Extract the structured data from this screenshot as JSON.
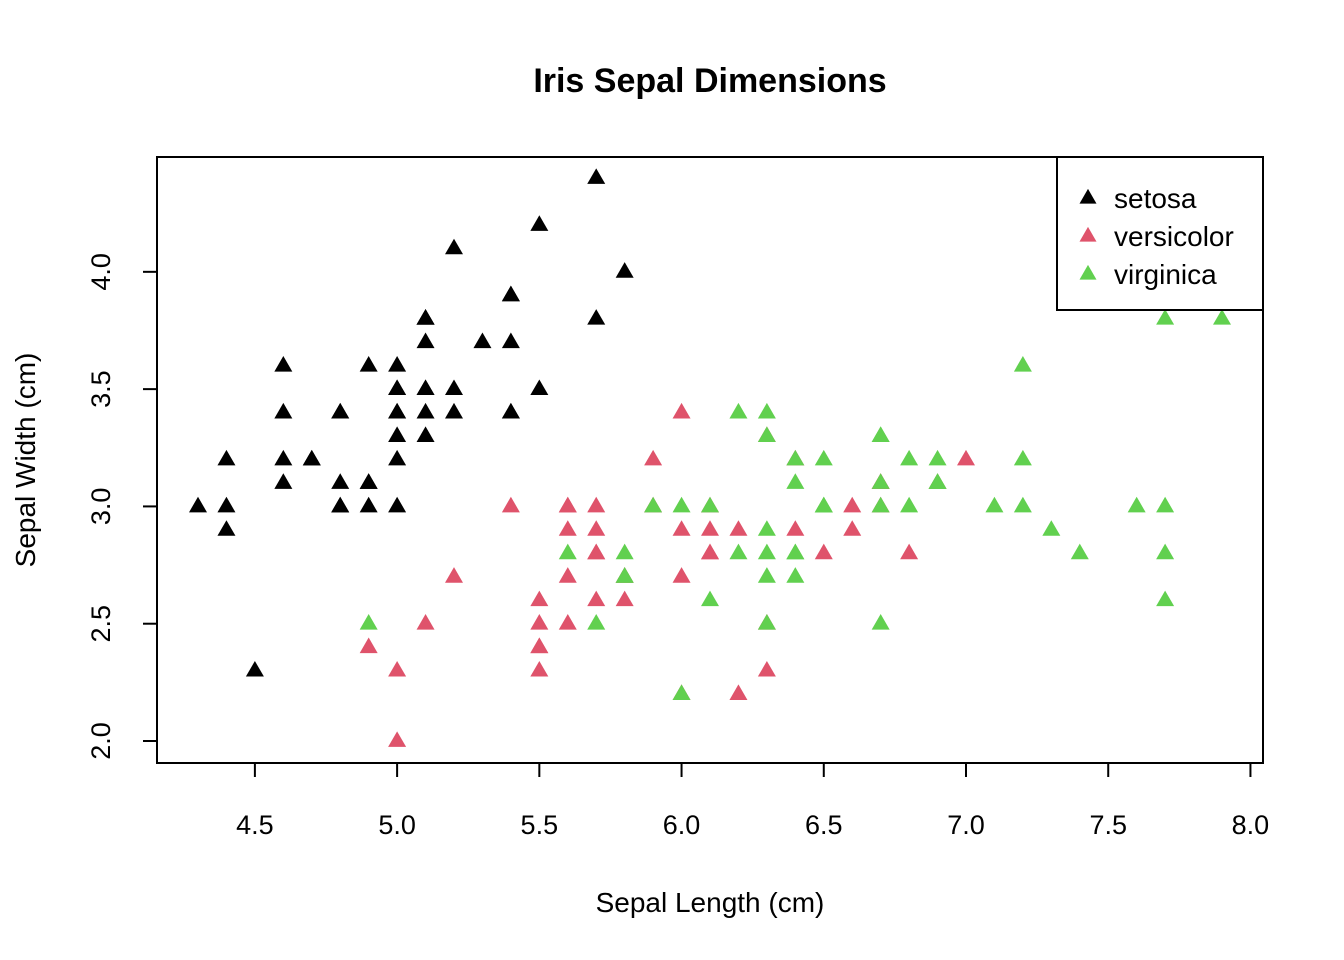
{
  "chart_data": {
    "type": "scatter",
    "title": "Iris Sepal Dimensions",
    "xlabel": "Sepal Length (cm)",
    "ylabel": "Sepal Width (cm)",
    "xlim": [
      4.3,
      7.9
    ],
    "ylim": [
      2.0,
      4.4
    ],
    "x_ticks": [
      "4.5",
      "5.0",
      "5.5",
      "6.0",
      "6.5",
      "7.0",
      "7.5",
      "8.0"
    ],
    "y_ticks": [
      "2.0",
      "2.5",
      "3.0",
      "3.5",
      "4.0"
    ],
    "grid": false,
    "legend_position": "top-right",
    "marker": "filled-triangle",
    "series": [
      {
        "name": "setosa",
        "color": "#000000",
        "points": [
          [
            5.1,
            3.5
          ],
          [
            4.9,
            3.0
          ],
          [
            4.7,
            3.2
          ],
          [
            4.6,
            3.1
          ],
          [
            5.0,
            3.6
          ],
          [
            5.4,
            3.9
          ],
          [
            4.6,
            3.4
          ],
          [
            5.0,
            3.4
          ],
          [
            4.4,
            2.9
          ],
          [
            4.9,
            3.1
          ],
          [
            5.4,
            3.7
          ],
          [
            4.8,
            3.4
          ],
          [
            4.8,
            3.0
          ],
          [
            4.3,
            3.0
          ],
          [
            5.8,
            4.0
          ],
          [
            5.7,
            4.4
          ],
          [
            5.4,
            3.9
          ],
          [
            5.1,
            3.5
          ],
          [
            5.7,
            3.8
          ],
          [
            5.1,
            3.8
          ],
          [
            5.4,
            3.4
          ],
          [
            5.1,
            3.7
          ],
          [
            4.6,
            3.6
          ],
          [
            5.1,
            3.3
          ],
          [
            4.8,
            3.4
          ],
          [
            5.0,
            3.0
          ],
          [
            5.0,
            3.4
          ],
          [
            5.2,
            3.5
          ],
          [
            5.2,
            3.4
          ],
          [
            4.7,
            3.2
          ],
          [
            4.8,
            3.1
          ],
          [
            5.4,
            3.4
          ],
          [
            5.2,
            4.1
          ],
          [
            5.5,
            4.2
          ],
          [
            4.9,
            3.1
          ],
          [
            5.0,
            3.2
          ],
          [
            5.5,
            3.5
          ],
          [
            4.9,
            3.6
          ],
          [
            4.4,
            3.0
          ],
          [
            5.1,
            3.4
          ],
          [
            5.0,
            3.5
          ],
          [
            4.5,
            2.3
          ],
          [
            4.4,
            3.2
          ],
          [
            5.0,
            3.5
          ],
          [
            5.1,
            3.8
          ],
          [
            4.8,
            3.0
          ],
          [
            5.1,
            3.8
          ],
          [
            4.6,
            3.2
          ],
          [
            5.3,
            3.7
          ],
          [
            5.0,
            3.3
          ]
        ]
      },
      {
        "name": "versicolor",
        "color": "#DF536B",
        "points": [
          [
            7.0,
            3.2
          ],
          [
            6.4,
            3.2
          ],
          [
            6.9,
            3.1
          ],
          [
            5.5,
            2.3
          ],
          [
            6.5,
            2.8
          ],
          [
            5.7,
            2.8
          ],
          [
            6.3,
            3.3
          ],
          [
            4.9,
            2.4
          ],
          [
            6.6,
            2.9
          ],
          [
            5.2,
            2.7
          ],
          [
            5.0,
            2.0
          ],
          [
            5.9,
            3.0
          ],
          [
            6.0,
            2.2
          ],
          [
            6.1,
            2.9
          ],
          [
            5.6,
            2.9
          ],
          [
            6.7,
            3.1
          ],
          [
            5.6,
            3.0
          ],
          [
            5.8,
            2.7
          ],
          [
            6.2,
            2.2
          ],
          [
            5.6,
            2.5
          ],
          [
            5.9,
            3.2
          ],
          [
            6.1,
            2.8
          ],
          [
            6.3,
            2.5
          ],
          [
            6.1,
            2.8
          ],
          [
            6.4,
            2.9
          ],
          [
            6.6,
            3.0
          ],
          [
            6.8,
            2.8
          ],
          [
            6.7,
            3.0
          ],
          [
            6.0,
            2.9
          ],
          [
            5.7,
            2.6
          ],
          [
            5.5,
            2.4
          ],
          [
            5.5,
            2.4
          ],
          [
            5.8,
            2.7
          ],
          [
            6.0,
            2.7
          ],
          [
            5.4,
            3.0
          ],
          [
            6.0,
            3.4
          ],
          [
            6.7,
            3.1
          ],
          [
            6.3,
            2.3
          ],
          [
            5.6,
            3.0
          ],
          [
            5.5,
            2.5
          ],
          [
            5.5,
            2.6
          ],
          [
            6.1,
            3.0
          ],
          [
            5.8,
            2.6
          ],
          [
            5.0,
            2.3
          ],
          [
            5.6,
            2.7
          ],
          [
            5.7,
            3.0
          ],
          [
            5.7,
            2.9
          ],
          [
            6.2,
            2.9
          ],
          [
            5.1,
            2.5
          ],
          [
            5.7,
            2.8
          ]
        ]
      },
      {
        "name": "virginica",
        "color": "#61D04F",
        "points": [
          [
            6.3,
            3.3
          ],
          [
            5.8,
            2.7
          ],
          [
            7.1,
            3.0
          ],
          [
            6.3,
            2.9
          ],
          [
            6.5,
            3.0
          ],
          [
            7.6,
            3.0
          ],
          [
            4.9,
            2.5
          ],
          [
            7.3,
            2.9
          ],
          [
            6.7,
            2.5
          ],
          [
            7.2,
            3.6
          ],
          [
            6.5,
            3.2
          ],
          [
            6.4,
            2.7
          ],
          [
            6.8,
            3.0
          ],
          [
            5.7,
            2.5
          ],
          [
            5.8,
            2.8
          ],
          [
            6.4,
            3.2
          ],
          [
            6.5,
            3.0
          ],
          [
            7.7,
            3.8
          ],
          [
            7.7,
            2.6
          ],
          [
            6.0,
            2.2
          ],
          [
            6.9,
            3.2
          ],
          [
            5.6,
            2.8
          ],
          [
            7.7,
            2.8
          ],
          [
            6.3,
            2.7
          ],
          [
            6.7,
            3.3
          ],
          [
            7.2,
            3.2
          ],
          [
            6.2,
            2.8
          ],
          [
            6.1,
            3.0
          ],
          [
            6.4,
            2.8
          ],
          [
            7.2,
            3.0
          ],
          [
            7.4,
            2.8
          ],
          [
            7.9,
            3.8
          ],
          [
            6.4,
            2.8
          ],
          [
            6.3,
            2.8
          ],
          [
            6.1,
            2.6
          ],
          [
            7.7,
            3.0
          ],
          [
            6.3,
            3.4
          ],
          [
            6.4,
            3.1
          ],
          [
            6.0,
            3.0
          ],
          [
            6.9,
            3.1
          ],
          [
            6.7,
            3.1
          ],
          [
            6.9,
            3.1
          ],
          [
            5.8,
            2.7
          ],
          [
            6.8,
            3.2
          ],
          [
            6.7,
            3.3
          ],
          [
            6.7,
            3.0
          ],
          [
            6.3,
            2.5
          ],
          [
            6.5,
            3.0
          ],
          [
            6.2,
            3.4
          ],
          [
            5.9,
            3.0
          ]
        ]
      }
    ]
  }
}
